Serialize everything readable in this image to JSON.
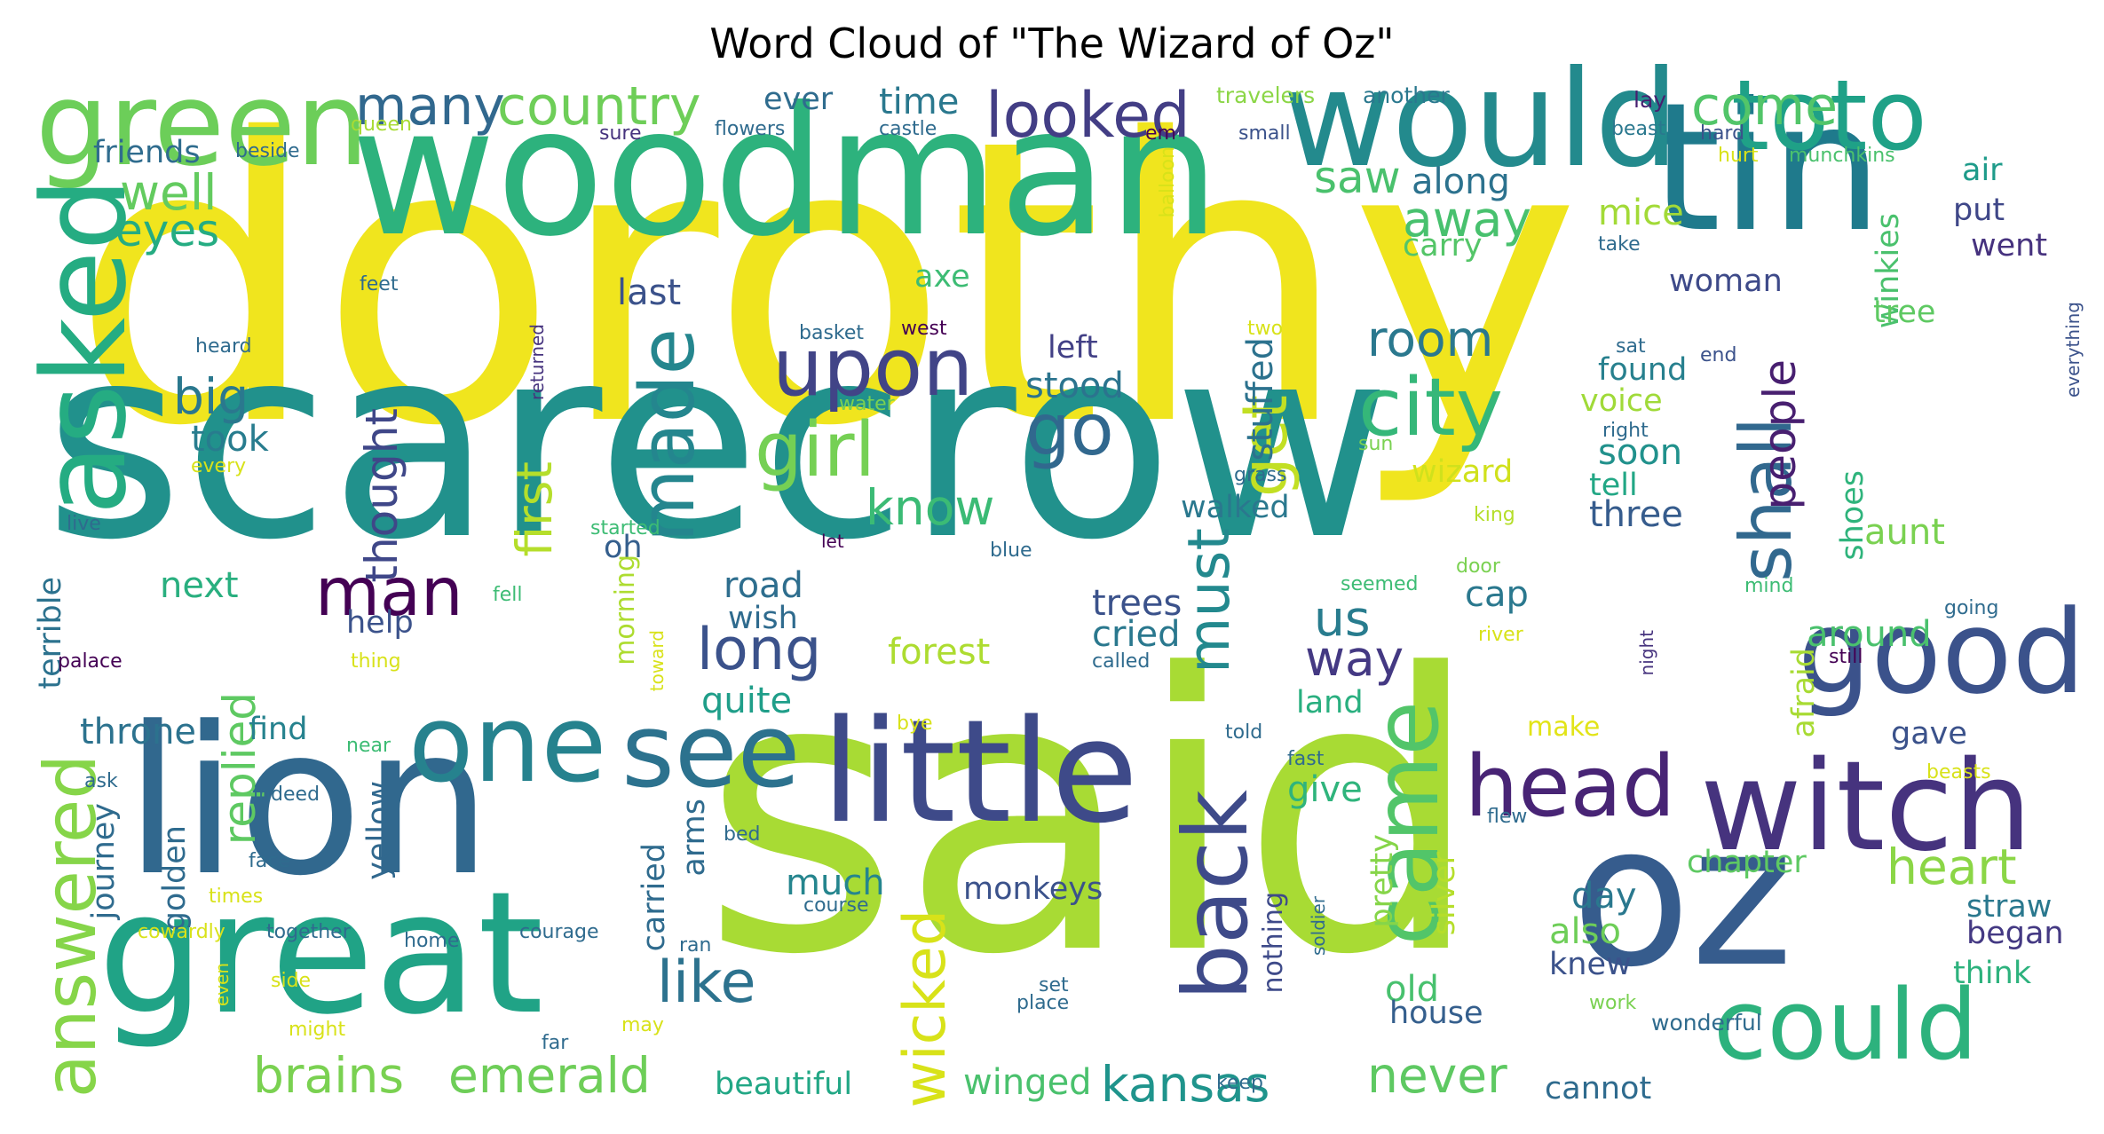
{
  "title": "Word Cloud of \"The Wizard of Oz\"",
  "words": [
    {
      "text": "dorothy",
      "color": "#f0e51e"
    },
    {
      "text": "scarecrow",
      "color": "#21918c"
    },
    {
      "text": "said",
      "color": "#a8db34"
    },
    {
      "text": "woodman",
      "color": "#2db27d"
    },
    {
      "text": "tin",
      "color": "#1f7a8c"
    },
    {
      "text": "lion",
      "color": "#31688e"
    },
    {
      "text": "great",
      "color": "#20a386"
    },
    {
      "text": "oz",
      "color": "#365c8d"
    },
    {
      "text": "would",
      "color": "#238a8d"
    },
    {
      "text": "little",
      "color": "#3e4a89"
    },
    {
      "text": "witch",
      "color": "#46337e"
    },
    {
      "text": "green",
      "color": "#6cce59"
    },
    {
      "text": "toto",
      "color": "#1fa187"
    },
    {
      "text": "asked",
      "color": "#25ac82"
    },
    {
      "text": "good",
      "color": "#3b528b"
    },
    {
      "text": "could",
      "color": "#2db27d"
    },
    {
      "text": "one",
      "color": "#26828e"
    },
    {
      "text": "see",
      "color": "#2c728e"
    },
    {
      "text": "head",
      "color": "#482475"
    },
    {
      "text": "back",
      "color": "#3e4a89"
    },
    {
      "text": "came",
      "color": "#52c569"
    },
    {
      "text": "answered",
      "color": "#86d549"
    },
    {
      "text": "upon",
      "color": "#414487"
    },
    {
      "text": "city",
      "color": "#35b779"
    },
    {
      "text": "made",
      "color": "#24868e"
    },
    {
      "text": "girl",
      "color": "#75d054"
    },
    {
      "text": "shall",
      "color": "#31688e"
    },
    {
      "text": "looked",
      "color": "#433e85"
    },
    {
      "text": "country",
      "color": "#6ece58"
    },
    {
      "text": "many",
      "color": "#31688e"
    },
    {
      "text": "come",
      "color": "#52c569"
    },
    {
      "text": "wicked",
      "color": "#d8e219"
    },
    {
      "text": "must",
      "color": "#23898e"
    },
    {
      "text": "get",
      "color": "#c2df23"
    },
    {
      "text": "go",
      "color": "#31688e"
    },
    {
      "text": "man",
      "color": "#440154"
    },
    {
      "text": "like",
      "color": "#2c728e"
    },
    {
      "text": "long",
      "color": "#3b528b"
    },
    {
      "text": "heart",
      "color": "#8bd646"
    },
    {
      "text": "brains",
      "color": "#7ad151"
    },
    {
      "text": "emerald",
      "color": "#6ece58"
    },
    {
      "text": "kansas",
      "color": "#1f948c"
    },
    {
      "text": "never",
      "color": "#5ec962"
    },
    {
      "text": "eyes",
      "color": "#25ac82"
    },
    {
      "text": "well",
      "color": "#63cb5f"
    },
    {
      "text": "saw",
      "color": "#4ac16d"
    },
    {
      "text": "away",
      "color": "#48c16e"
    },
    {
      "text": "know",
      "color": "#3bbb75"
    },
    {
      "text": "room",
      "color": "#2a788e"
    },
    {
      "text": "people",
      "color": "#481f70"
    },
    {
      "text": "big",
      "color": "#2a788e"
    },
    {
      "text": "first",
      "color": "#b5de2b"
    },
    {
      "text": "thought",
      "color": "#3f4788"
    },
    {
      "text": "replied",
      "color": "#5ec962"
    },
    {
      "text": "way",
      "color": "#443983"
    },
    {
      "text": "us",
      "color": "#287c8e"
    },
    {
      "text": "friends",
      "color": "#2f6c8e"
    },
    {
      "text": "ever",
      "color": "#2f6c8e"
    },
    {
      "text": "time",
      "color": "#2a788e"
    },
    {
      "text": "along",
      "color": "#2c728e"
    },
    {
      "text": "mice",
      "color": "#a2da37"
    },
    {
      "text": "put",
      "color": "#3f4788"
    },
    {
      "text": "went",
      "color": "#46327e"
    },
    {
      "text": "air",
      "color": "#1e9b8a"
    },
    {
      "text": "winkies",
      "color": "#4ac16d"
    },
    {
      "text": "stuffed",
      "color": "#2c728e"
    },
    {
      "text": "carry",
      "color": "#54c568"
    },
    {
      "text": "axe",
      "color": "#3dbc74"
    },
    {
      "text": "last",
      "color": "#3b528b"
    },
    {
      "text": "took",
      "color": "#287c8e"
    },
    {
      "text": "left",
      "color": "#424086"
    },
    {
      "text": "stood",
      "color": "#2b748e"
    },
    {
      "text": "found",
      "color": "#27808e"
    },
    {
      "text": "voice",
      "color": "#a0da39"
    },
    {
      "text": "soon",
      "color": "#21918c"
    },
    {
      "text": "tell",
      "color": "#22a785"
    },
    {
      "text": "three",
      "color": "#365c8d"
    },
    {
      "text": "wizard",
      "color": "#d0e11c"
    },
    {
      "text": "walked",
      "color": "#2a788e"
    },
    {
      "text": "woman",
      "color": "#3e4a89"
    },
    {
      "text": "tree",
      "color": "#5ec962"
    },
    {
      "text": "aunt",
      "color": "#7ad151"
    },
    {
      "text": "around",
      "color": "#4ac16d"
    },
    {
      "text": "shoes",
      "color": "#2fb47c"
    },
    {
      "text": "next",
      "color": "#29af7f"
    },
    {
      "text": "road",
      "color": "#2e6e8e"
    },
    {
      "text": "wish",
      "color": "#2f6b8e"
    },
    {
      "text": "help",
      "color": "#3b528b"
    },
    {
      "text": "oh",
      "color": "#355f8d"
    },
    {
      "text": "trees",
      "color": "#3b528b"
    },
    {
      "text": "cried",
      "color": "#2a788e"
    },
    {
      "text": "cap",
      "color": "#2a788e"
    },
    {
      "text": "forest",
      "color": "#addc30"
    },
    {
      "text": "quite",
      "color": "#1f9e89"
    },
    {
      "text": "land",
      "color": "#29af7f"
    },
    {
      "text": "make",
      "color": "#e2e418"
    },
    {
      "text": "gave",
      "color": "#3b528b"
    },
    {
      "text": "throne",
      "color": "#2c728e"
    },
    {
      "text": "find",
      "color": "#26828e"
    },
    {
      "text": "terrible",
      "color": "#2c728e"
    },
    {
      "text": "morning",
      "color": "#addc30"
    },
    {
      "text": "afraid",
      "color": "#a8db34"
    },
    {
      "text": "give",
      "color": "#2fb47c"
    },
    {
      "text": "much",
      "color": "#25858e"
    },
    {
      "text": "monkeys",
      "color": "#3b528b"
    },
    {
      "text": "day",
      "color": "#2a788e"
    },
    {
      "text": "chapter",
      "color": "#5ec962"
    },
    {
      "text": "straw",
      "color": "#2a788e"
    },
    {
      "text": "began",
      "color": "#443983"
    },
    {
      "text": "also",
      "color": "#6ece58"
    },
    {
      "text": "knew",
      "color": "#3b528b"
    },
    {
      "text": "think",
      "color": "#2db27d"
    },
    {
      "text": "old",
      "color": "#48c16e"
    },
    {
      "text": "house",
      "color": "#355f8d"
    },
    {
      "text": "yellow",
      "color": "#31688e"
    },
    {
      "text": "golden",
      "color": "#2f6b8e"
    },
    {
      "text": "journey",
      "color": "#2f6b8e"
    },
    {
      "text": "carried",
      "color": "#2f6b8e"
    },
    {
      "text": "arms",
      "color": "#2f6b8e"
    },
    {
      "text": "pretty",
      "color": "#86d549"
    },
    {
      "text": "silver",
      "color": "#b5de2b"
    },
    {
      "text": "nothing",
      "color": "#3e4a89"
    },
    {
      "text": "beautiful",
      "color": "#22a785"
    },
    {
      "text": "winged",
      "color": "#4ac16d"
    },
    {
      "text": "cannot",
      "color": "#2f6b8e"
    },
    {
      "text": "wonderful",
      "color": "#2f6b8e"
    },
    {
      "text": "travelers",
      "color": "#8bd646"
    },
    {
      "text": "another",
      "color": "#2a788e"
    },
    {
      "text": "lay",
      "color": "#481f70"
    },
    {
      "text": "queen",
      "color": "#a8db34"
    },
    {
      "text": "sure",
      "color": "#46337e"
    },
    {
      "text": "flowers",
      "color": "#2f6b8e"
    },
    {
      "text": "castle",
      "color": "#2f6b8e"
    },
    {
      "text": "em",
      "color": "#440154"
    },
    {
      "text": "small",
      "color": "#3b528b"
    },
    {
      "text": "beast",
      "color": "#2a788e"
    },
    {
      "text": "hard",
      "color": "#3b528b"
    },
    {
      "text": "hurt",
      "color": "#d8e219"
    },
    {
      "text": "munchkins",
      "color": "#4ac16d"
    },
    {
      "text": "beside",
      "color": "#2f6b8e"
    },
    {
      "text": "balloon",
      "color": "#d8e219"
    },
    {
      "text": "take",
      "color": "#2f6b8e"
    },
    {
      "text": "feet",
      "color": "#2f6b8e"
    },
    {
      "text": "heard",
      "color": "#2f6b8e"
    },
    {
      "text": "basket",
      "color": "#2f6b8e"
    },
    {
      "text": "west",
      "color": "#440154"
    },
    {
      "text": "two",
      "color": "#d8e219"
    },
    {
      "text": "returned",
      "color": "#46337e"
    },
    {
      "text": "water",
      "color": "#7ad151"
    },
    {
      "text": "sun",
      "color": "#7ad151"
    },
    {
      "text": "sat",
      "color": "#2f6b8e"
    },
    {
      "text": "right",
      "color": "#2f6b8e"
    },
    {
      "text": "end",
      "color": "#3b528b"
    },
    {
      "text": "everything",
      "color": "#3b528b"
    },
    {
      "text": "every",
      "color": "#d8e219"
    },
    {
      "text": "grass",
      "color": "#2f6b8e"
    },
    {
      "text": "king",
      "color": "#b5de2b"
    },
    {
      "text": "live",
      "color": "#2f6b8e"
    },
    {
      "text": "started",
      "color": "#3dbc74"
    },
    {
      "text": "let",
      "color": "#440154"
    },
    {
      "text": "blue",
      "color": "#2f6b8e"
    },
    {
      "text": "seemed",
      "color": "#3dbc74"
    },
    {
      "text": "door",
      "color": "#7ad151"
    },
    {
      "text": "mind",
      "color": "#3dbc74"
    },
    {
      "text": "going",
      "color": "#2f6b8e"
    },
    {
      "text": "fell",
      "color": "#3dbc74"
    },
    {
      "text": "palace",
      "color": "#440154"
    },
    {
      "text": "thing",
      "color": "#d8e219"
    },
    {
      "text": "toward",
      "color": "#d8e219"
    },
    {
      "text": "called",
      "color": "#2f6b8e"
    },
    {
      "text": "river",
      "color": "#d8e219"
    },
    {
      "text": "night",
      "color": "#46337e"
    },
    {
      "text": "still",
      "color": "#440154"
    },
    {
      "text": "bye",
      "color": "#d8e219"
    },
    {
      "text": "told",
      "color": "#2f6b8e"
    },
    {
      "text": "fast",
      "color": "#2f6b8e"
    },
    {
      "text": "beasts",
      "color": "#d8e219"
    },
    {
      "text": "near",
      "color": "#3dbc74"
    },
    {
      "text": "ask",
      "color": "#2f6b8e"
    },
    {
      "text": "indeed",
      "color": "#2f6b8e"
    },
    {
      "text": "bed",
      "color": "#2f6b8e"
    },
    {
      "text": "flew",
      "color": "#2f6b8e"
    },
    {
      "text": "face",
      "color": "#2f6b8e"
    },
    {
      "text": "times",
      "color": "#d8e219"
    },
    {
      "text": "course",
      "color": "#2f6b8e"
    },
    {
      "text": "soldier",
      "color": "#2f6b8e"
    },
    {
      "text": "cowardly",
      "color": "#d8e219"
    },
    {
      "text": "together",
      "color": "#2f6b8e"
    },
    {
      "text": "home",
      "color": "#2f6b8e"
    },
    {
      "text": "courage",
      "color": "#2f6b8e"
    },
    {
      "text": "ran",
      "color": "#2f6b8e"
    },
    {
      "text": "side",
      "color": "#d8e219"
    },
    {
      "text": "set",
      "color": "#2f6b8e"
    },
    {
      "text": "place",
      "color": "#2f6b8e"
    },
    {
      "text": "work",
      "color": "#7ad151"
    },
    {
      "text": "even",
      "color": "#d8e219"
    },
    {
      "text": "might",
      "color": "#d8e219"
    },
    {
      "text": "may",
      "color": "#d8e219"
    },
    {
      "text": "far",
      "color": "#2f6b8e"
    },
    {
      "text": "keep",
      "color": "#2f6b8e"
    }
  ]
}
